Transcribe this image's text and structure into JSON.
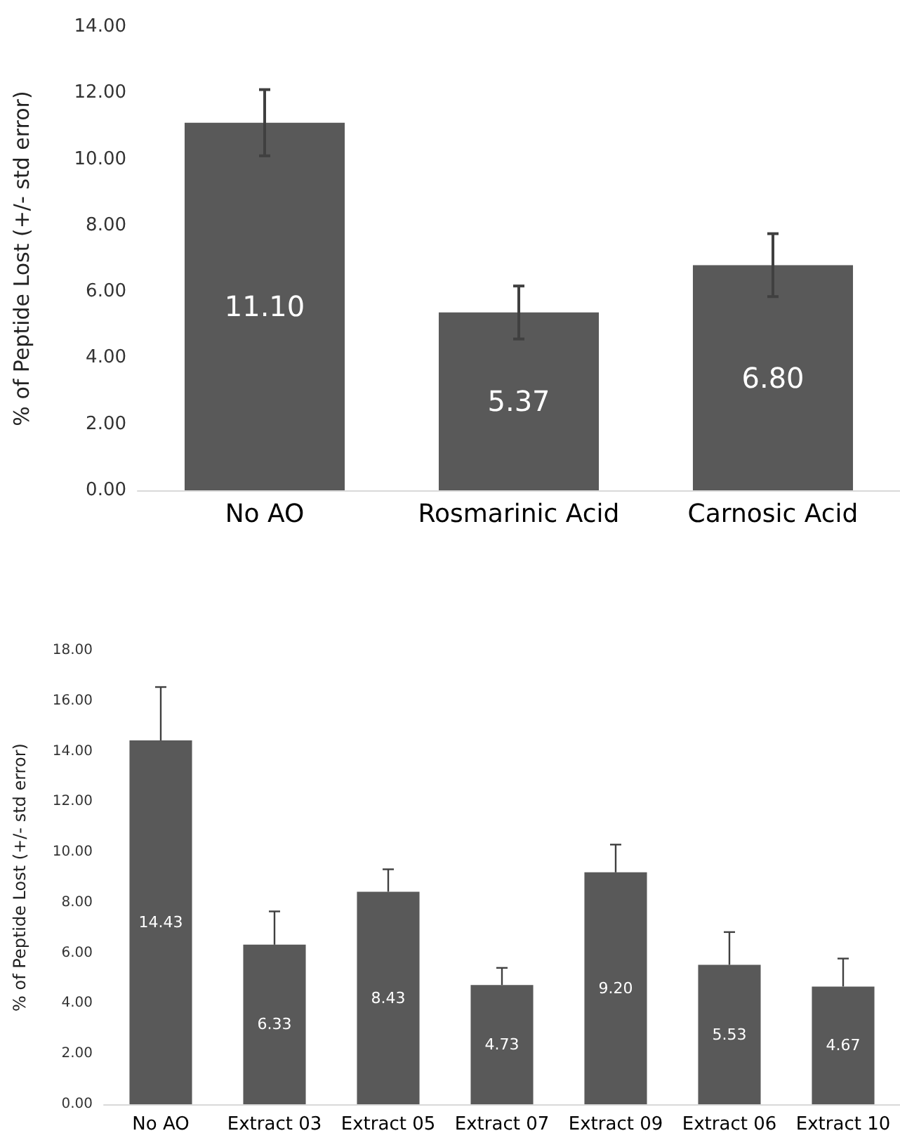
{
  "chart_data": [
    {
      "type": "bar",
      "ylabel": "% of Peptide Lost (+/- std error)",
      "categories": [
        "No AO",
        "Rosmarinic Acid",
        "Carnosic Acid"
      ],
      "values": [
        11.1,
        5.37,
        6.8
      ],
      "color": "#595959",
      "errors": [
        1.0,
        0.8,
        0.95
      ],
      "value_labels": [
        "11.10",
        "5.37",
        "6.80"
      ],
      "ylim": [
        0,
        14
      ],
      "yticks": [
        {
          "value": 0,
          "label": "0.00"
        },
        {
          "value": 2,
          "label": "2.00"
        },
        {
          "value": 4,
          "label": "4.00"
        },
        {
          "value": 6,
          "label": "6.00"
        },
        {
          "value": 8,
          "label": "8.00"
        },
        {
          "value": 10,
          "label": "10.00"
        },
        {
          "value": 12,
          "label": "12.00"
        },
        {
          "value": 14,
          "label": "14.00"
        }
      ]
    },
    {
      "type": "bar",
      "ylabel": "% of Peptide Lost (+/- std error)",
      "categories": [
        "No AO",
        "Extract 03",
        "Extract 05",
        "Extract 07",
        "Extract 09",
        "Extract 06",
        "Extract 10"
      ],
      "values": [
        14.43,
        6.33,
        8.43,
        4.73,
        9.2,
        5.53,
        4.67
      ],
      "color": "#595959",
      "errors": [
        [
          14.43,
          16.55
        ],
        [
          6.33,
          7.65
        ],
        [
          8.43,
          9.32
        ],
        [
          4.73,
          5.41
        ],
        [
          9.2,
          10.3
        ],
        [
          5.53,
          6.83
        ],
        [
          4.67,
          5.78
        ]
      ],
      "value_labels": [
        "14.43",
        "6.33",
        "8.43",
        "4.73",
        "9.20",
        "5.53",
        "4.67"
      ],
      "ylim": [
        0,
        18
      ],
      "yticks": [
        {
          "value": 0,
          "label": "0.00"
        },
        {
          "value": 2,
          "label": "2.00"
        },
        {
          "value": 4,
          "label": "4.00"
        },
        {
          "value": 6,
          "label": "6.00"
        },
        {
          "value": 8,
          "label": "8.00"
        },
        {
          "value": 10,
          "label": "10.00"
        },
        {
          "value": 12,
          "label": "12.00"
        },
        {
          "value": 14,
          "label": "14.00"
        },
        {
          "value": 16,
          "label": "16.00"
        },
        {
          "value": 18,
          "label": "18.00"
        }
      ]
    }
  ]
}
